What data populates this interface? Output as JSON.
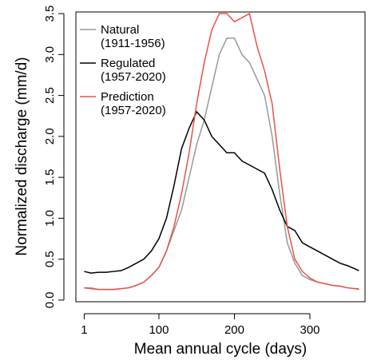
{
  "chart_data": {
    "type": "line",
    "xlabel": "Mean annual cycle (days)",
    "ylabel": "Normalized discharge (mm/d)",
    "x": [
      1,
      10,
      20,
      30,
      40,
      50,
      60,
      70,
      80,
      90,
      100,
      110,
      120,
      130,
      140,
      150,
      160,
      170,
      180,
      190,
      200,
      210,
      220,
      230,
      240,
      250,
      260,
      270,
      280,
      290,
      300,
      310,
      320,
      330,
      340,
      350,
      360,
      365
    ],
    "series": [
      {
        "name": "Natural\n(1911-1956)",
        "color": "#999999",
        "values": [
          0.15,
          0.15,
          0.13,
          0.13,
          0.13,
          0.14,
          0.15,
          0.18,
          0.22,
          0.3,
          0.4,
          0.6,
          0.85,
          1.1,
          1.5,
          1.9,
          2.2,
          2.6,
          3.0,
          3.2,
          3.2,
          3.0,
          2.9,
          2.7,
          2.5,
          2.0,
          1.3,
          0.7,
          0.45,
          0.3,
          0.25,
          0.22,
          0.2,
          0.18,
          0.17,
          0.15,
          0.14,
          0.14
        ]
      },
      {
        "name": "Regulated\n(1957-2020)",
        "color": "#000000",
        "values": [
          0.35,
          0.33,
          0.34,
          0.34,
          0.35,
          0.36,
          0.4,
          0.45,
          0.5,
          0.6,
          0.75,
          1.0,
          1.4,
          1.85,
          2.1,
          2.3,
          2.2,
          2.0,
          1.9,
          1.8,
          1.8,
          1.7,
          1.65,
          1.6,
          1.55,
          1.35,
          1.1,
          0.9,
          0.85,
          0.7,
          0.65,
          0.6,
          0.55,
          0.5,
          0.45,
          0.42,
          0.38,
          0.36
        ]
      },
      {
        "name": "Prediction\n(1957-2020)",
        "color": "#e8524a",
        "values": [
          0.15,
          0.14,
          0.13,
          0.13,
          0.13,
          0.14,
          0.15,
          0.18,
          0.22,
          0.3,
          0.4,
          0.6,
          0.9,
          1.3,
          1.8,
          2.4,
          2.9,
          3.3,
          3.5,
          3.5,
          3.4,
          3.45,
          3.5,
          3.1,
          2.8,
          2.4,
          1.6,
          0.9,
          0.5,
          0.35,
          0.27,
          0.22,
          0.2,
          0.18,
          0.17,
          0.15,
          0.14,
          0.13
        ]
      }
    ],
    "xlim": [
      -10,
      373
    ],
    "xticks": [
      1,
      100,
      200,
      300
    ],
    "ylim": [
      -0.02,
      3.52
    ],
    "yticks": [
      {
        "value": 0,
        "label": "0.0"
      },
      0.5,
      {
        "value": 1,
        "label": "1.0"
      },
      1.5,
      {
        "value": 2,
        "label": "2.0"
      },
      2.5,
      {
        "value": 3,
        "label": "3.0"
      },
      3.5
    ],
    "legend": "top-left"
  }
}
